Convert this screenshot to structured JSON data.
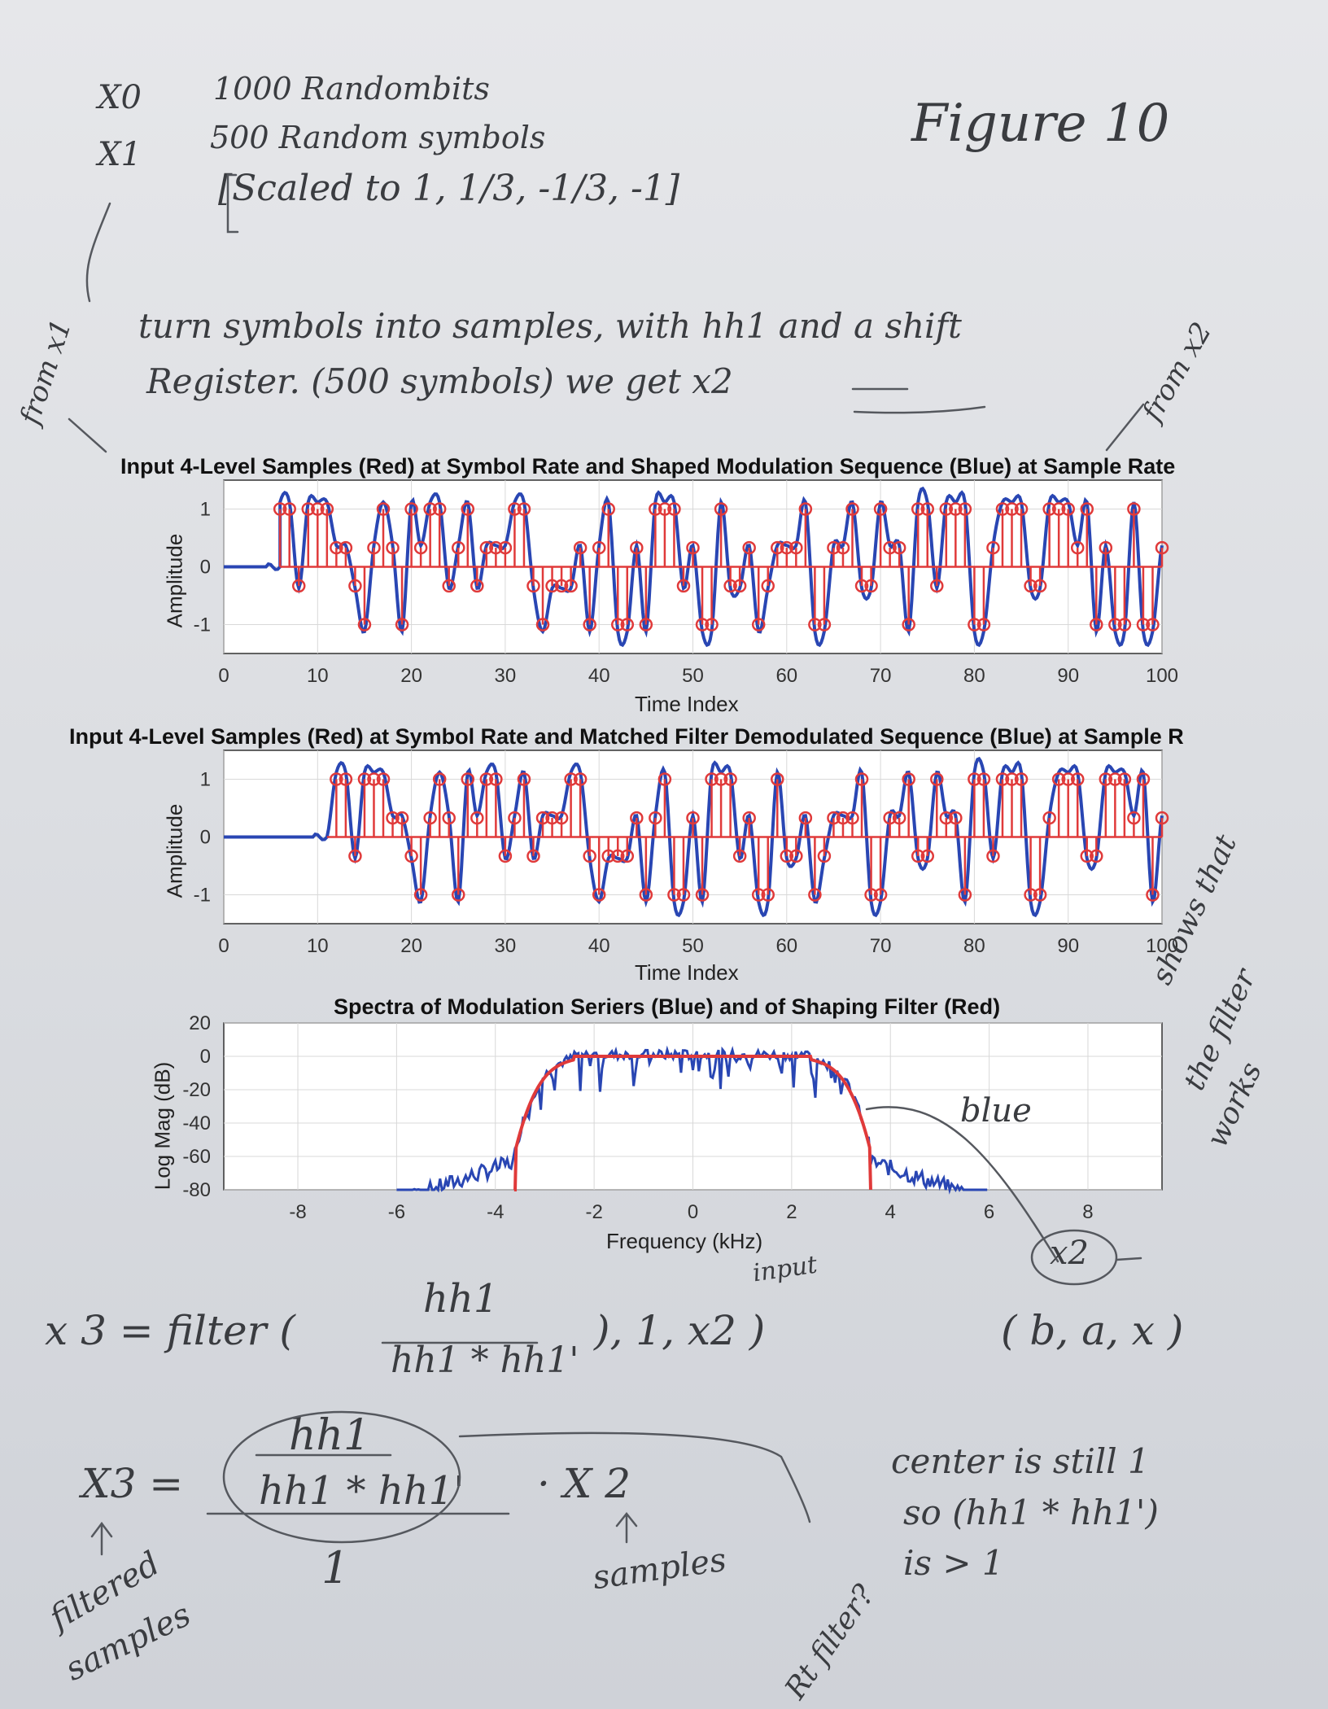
{
  "notes": {
    "x0_label": "X0",
    "x0_text": "1000 Randombits",
    "x1_label": "X1",
    "x1_text": "500 Random symbols",
    "x1_scale": "[Scaled to 1, 1/3, -1/3, -1]",
    "figure_title": "Figure 10",
    "from_x1": "from x1",
    "line1": "turn symbols into samples, with hh1 and a shift",
    "line2": "Register. (500 symbols) we get x2",
    "from_x2": "from x2",
    "shows": [
      "shows that",
      "the filter",
      "works"
    ],
    "blue": "blue",
    "x2_circled": "x2",
    "eq1_lhs": "x 3 = filter (",
    "eq1_num": "hh1",
    "eq1_den": "hh1 * hh1'",
    "eq1_rest": "), 1, x2 )",
    "eq1_input": "input",
    "eq1_args": "( b, a, x )",
    "eq2_lhs": "X3 =",
    "eq2_num": "hh1",
    "eq2_den": "hh1 * hh1'",
    "eq2_one": "1",
    "eq2_mult": "·  X 2",
    "filtered": "filtered",
    "samples_lbl": "samples",
    "samples2": "samples",
    "rt_filter": "Rt filter?",
    "center1": "center is still 1",
    "center2": "so (hh1 * hh1')",
    "center3": "is > 1"
  },
  "colors": {
    "series_blue": "#2946b3",
    "series_red": "#e03a3a",
    "ink": "#3a3c40"
  },
  "chart_data": [
    {
      "type": "line",
      "title": "Input 4-Level Samples (Red) at Symbol Rate and Shaped Modulation Sequence (Blue) at Sample Rate",
      "xlabel": "Time Index",
      "ylabel": "Amplitude",
      "xlim": [
        0,
        100
      ],
      "ylim": [
        -1.5,
        1.5
      ],
      "xticks": [
        0,
        10,
        20,
        30,
        40,
        50,
        60,
        70,
        80,
        90,
        100
      ],
      "yticks": [
        -1,
        0,
        1
      ],
      "grid": true,
      "symbol_start": 6,
      "symbol_step": 1,
      "lead_in_end": 6,
      "series": [
        {
          "name": "Red",
          "style": "stem-circle",
          "values": [
            1,
            1,
            -0.33,
            1,
            1,
            1,
            0.33,
            0.33,
            -0.33,
            -1,
            0.33,
            1,
            0.33,
            -1,
            1,
            0.33,
            1,
            1,
            -0.33,
            0.33,
            1,
            -0.33,
            0.33,
            0.33,
            0.33,
            1,
            1,
            -0.33,
            -1,
            -0.33,
            -0.33,
            -0.33,
            0.33,
            -1,
            0.33,
            1,
            -1,
            -1,
            0.33,
            -1,
            1,
            1,
            1,
            -0.33,
            0.33,
            -1,
            -1,
            1,
            -0.33,
            -0.33,
            0.33,
            -1,
            -0.33,
            0.33,
            0.33,
            0.33,
            1,
            -1,
            -1,
            0.33,
            0.33,
            1,
            -0.33,
            -0.33,
            1,
            0.33,
            0.33,
            -1,
            1,
            1,
            -0.33,
            1,
            1,
            1,
            -1,
            -1,
            0.33,
            1,
            1,
            1,
            -0.33,
            -0.33,
            1,
            1,
            1,
            0.33,
            1,
            -1,
            0.33,
            -1,
            -1,
            1,
            -1,
            -1,
            0.33,
            -1,
            -0.33,
            0.33,
            1,
            -0.33,
            -1
          ]
        },
        {
          "name": "Blue",
          "style": "line",
          "note": "shaped sequence tracks red symbols"
        }
      ]
    },
    {
      "type": "line",
      "title": "Input 4-Level Samples (Red) at Symbol Rate and Matched Filter Demodulated Sequence (Blue) at Sample R",
      "xlabel": "Time Index",
      "ylabel": "Amplitude",
      "xlim": [
        0,
        100
      ],
      "ylim": [
        -1.5,
        1.5
      ],
      "xticks": [
        0,
        10,
        20,
        30,
        40,
        50,
        60,
        70,
        80,
        90,
        100
      ],
      "yticks": [
        -1,
        0,
        1
      ],
      "grid": true,
      "symbol_start": 12,
      "symbol_step": 1,
      "lead_in_end": 11,
      "series": [
        {
          "name": "Red",
          "style": "stem-circle",
          "values": [
            1,
            1,
            -0.33,
            1,
            1,
            1,
            0.33,
            0.33,
            -0.33,
            -1,
            0.33,
            1,
            0.33,
            -1,
            1,
            0.33,
            1,
            1,
            -0.33,
            0.33,
            1,
            -0.33,
            0.33,
            0.33,
            0.33,
            1,
            1,
            -0.33,
            -1,
            -0.33,
            -0.33,
            -0.33,
            0.33,
            -1,
            0.33,
            1,
            -1,
            -1,
            0.33,
            -1,
            1,
            1,
            1,
            -0.33,
            0.33,
            -1,
            -1,
            1,
            -0.33,
            -0.33,
            0.33,
            -1,
            -0.33,
            0.33,
            0.33,
            0.33,
            1,
            -1,
            -1,
            0.33,
            0.33,
            1,
            -0.33,
            -0.33,
            1,
            0.33,
            0.33,
            -1,
            1,
            1,
            -0.33,
            1,
            1,
            1,
            -1,
            -1,
            0.33,
            1,
            1,
            1,
            -0.33,
            -0.33,
            1,
            1,
            1,
            0.33,
            1,
            -1,
            0.33
          ]
        },
        {
          "name": "Blue",
          "style": "line",
          "note": "matched filter output tracks red symbols"
        }
      ]
    },
    {
      "type": "line",
      "title": "Spectra of Modulation Seriers (Blue) and of Shaping Filter (Red)",
      "xlabel": "Frequency (kHz)",
      "ylabel": "Log Mag (dB)",
      "xlim": [
        -9.5,
        9.5
      ],
      "ylim": [
        -80,
        20
      ],
      "xticks": [
        -8,
        -6,
        -4,
        -2,
        0,
        2,
        4,
        6,
        8
      ],
      "yticks": [
        20,
        0,
        -20,
        -40,
        -60,
        -80
      ],
      "grid": true,
      "passband_edge_khz": 3.6,
      "passband_level_db": 0,
      "stopband_floor_db": -80,
      "sidelobe_extent_khz": 6,
      "series": [
        {
          "name": "Blue",
          "style": "line",
          "description": "noisy passband near 0 dB between -3.6 and 3.6 kHz"
        },
        {
          "name": "Red",
          "style": "line",
          "description": "smooth shaping filter response"
        }
      ]
    }
  ]
}
